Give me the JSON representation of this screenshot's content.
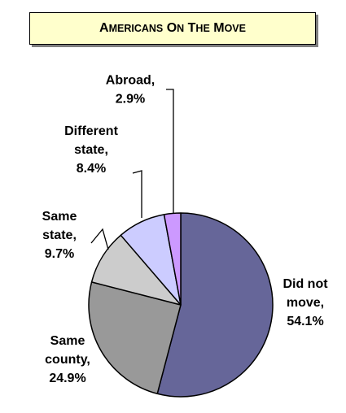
{
  "chart_data": {
    "type": "pie",
    "title": "Americans on the Move",
    "start_angle_deg": 0,
    "direction": "clockwise",
    "slices": [
      {
        "name": "Did not move",
        "value": 54.1,
        "value_label": "54.1%",
        "color": "#666699",
        "label_lines": [
          "Did not",
          "move,",
          "54.1%"
        ]
      },
      {
        "name": "Same county",
        "value": 24.9,
        "value_label": "24.9%",
        "color": "#999999",
        "label_lines": [
          "Same",
          "county,",
          "24.9%"
        ]
      },
      {
        "name": "Same state",
        "value": 9.7,
        "value_label": "9.7%",
        "color": "#cccccc",
        "label_lines": [
          "Same",
          "state,",
          "9.7%"
        ]
      },
      {
        "name": "Different state",
        "value": 8.4,
        "value_label": "8.4%",
        "color": "#ccccff",
        "label_lines": [
          "Different",
          "state,",
          "8.4%"
        ]
      },
      {
        "name": "Abroad",
        "value": 2.9,
        "value_label": "2.9%",
        "color": "#cc99ff",
        "label_lines": [
          "Abroad,",
          "2.9%"
        ]
      }
    ],
    "legend": "none",
    "leader_lines": true
  }
}
